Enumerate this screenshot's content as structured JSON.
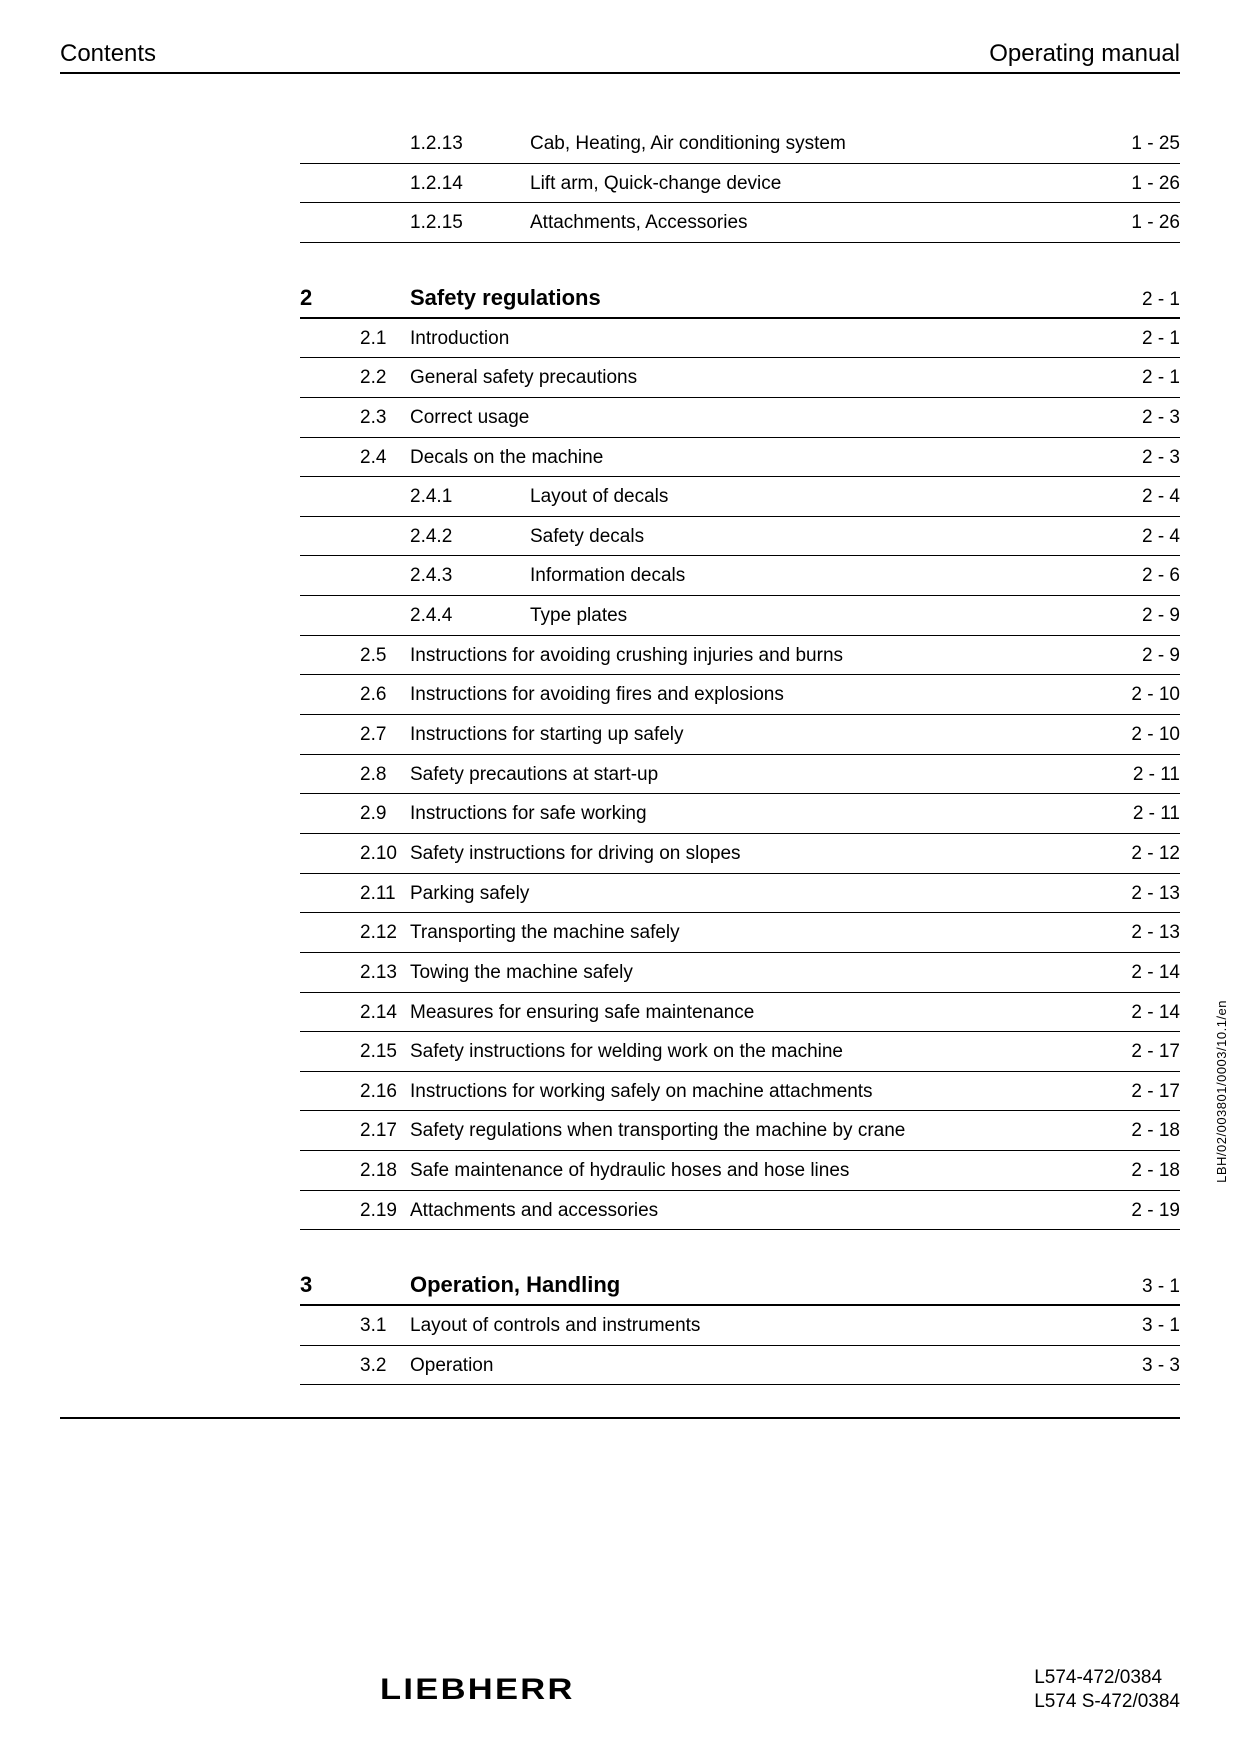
{
  "header": {
    "left": "Contents",
    "right": "Operating manual"
  },
  "toc": [
    {
      "level": "sub",
      "num": "1.2.13",
      "title": "Cab, Heating, Air conditioning system",
      "page": "1 - 25"
    },
    {
      "level": "sub",
      "num": "1.2.14",
      "title": "Lift arm, Quick-change device",
      "page": "1 - 26"
    },
    {
      "level": "sub",
      "num": "1.2.15",
      "title": "Attachments, Accessories",
      "page": "1 - 26"
    },
    {
      "level": "chapter",
      "num": "2",
      "title": "Safety regulations",
      "page": "2 - 1"
    },
    {
      "level": "sec",
      "num": "2.1",
      "title": "Introduction",
      "page": "2 - 1"
    },
    {
      "level": "sec",
      "num": "2.2",
      "title": "General safety precautions",
      "page": "2 - 1"
    },
    {
      "level": "sec",
      "num": "2.3",
      "title": "Correct usage",
      "page": "2 - 3"
    },
    {
      "level": "sec",
      "num": "2.4",
      "title": "Decals on the machine",
      "page": "2 - 3"
    },
    {
      "level": "sub",
      "num": "2.4.1",
      "title": "Layout of decals",
      "page": "2 - 4"
    },
    {
      "level": "sub",
      "num": "2.4.2",
      "title": "Safety decals",
      "page": "2 - 4"
    },
    {
      "level": "sub",
      "num": "2.4.3",
      "title": "Information decals",
      "page": "2 - 6"
    },
    {
      "level": "sub",
      "num": "2.4.4",
      "title": "Type plates",
      "page": "2 - 9"
    },
    {
      "level": "sec",
      "num": "2.5",
      "title": "Instructions for avoiding crushing injuries and burns",
      "page": "2 - 9"
    },
    {
      "level": "sec",
      "num": "2.6",
      "title": "Instructions for avoiding fires and explosions",
      "page": "2 - 10"
    },
    {
      "level": "sec",
      "num": "2.7",
      "title": "Instructions for starting up safely",
      "page": "2 - 10"
    },
    {
      "level": "sec",
      "num": "2.8",
      "title": "Safety precautions at start-up",
      "page": "2 - 11"
    },
    {
      "level": "sec",
      "num": "2.9",
      "title": "Instructions for safe working",
      "page": "2 - 11"
    },
    {
      "level": "sec",
      "num": "2.10",
      "title": "Safety instructions for driving on slopes",
      "page": "2 - 12"
    },
    {
      "level": "sec",
      "num": "2.11",
      "title": "Parking safely",
      "page": "2 - 13"
    },
    {
      "level": "sec",
      "num": "2.12",
      "title": "Transporting the machine safely",
      "page": "2 - 13"
    },
    {
      "level": "sec",
      "num": "2.13",
      "title": "Towing the machine safely",
      "page": "2 - 14"
    },
    {
      "level": "sec",
      "num": "2.14",
      "title": "Measures for ensuring safe maintenance",
      "page": "2 - 14"
    },
    {
      "level": "sec",
      "num": "2.15",
      "title": "Safety instructions for welding work on the machine",
      "page": "2 - 17"
    },
    {
      "level": "sec",
      "num": "2.16",
      "title": "Instructions for working safely on machine attachments",
      "page": "2 - 17"
    },
    {
      "level": "sec",
      "num": "2.17",
      "title": "Safety regulations when transporting the machine by crane",
      "page": "2 - 18"
    },
    {
      "level": "sec",
      "num": "2.18",
      "title": "Safe maintenance of hydraulic hoses and hose lines",
      "page": "2 - 18"
    },
    {
      "level": "sec",
      "num": "2.19",
      "title": "Attachments and accessories",
      "page": "2 - 19"
    },
    {
      "level": "chapter",
      "num": "3",
      "title": "Operation, Handling",
      "page": "3 - 1"
    },
    {
      "level": "sec",
      "num": "3.1",
      "title": "Layout of controls and instruments",
      "page": "3 - 1"
    },
    {
      "level": "sec",
      "num": "3.2",
      "title": "Operation",
      "page": "3 - 3"
    }
  ],
  "footer": {
    "logo_text": "LIEBHERR",
    "model_lines": [
      "L574-472/0384",
      "L574 S-472/0384"
    ]
  },
  "side_code": "LBH/02/003801/0003/10.1/en",
  "colors": {
    "text": "#000000",
    "background": "#ffffff",
    "rule": "#000000"
  }
}
